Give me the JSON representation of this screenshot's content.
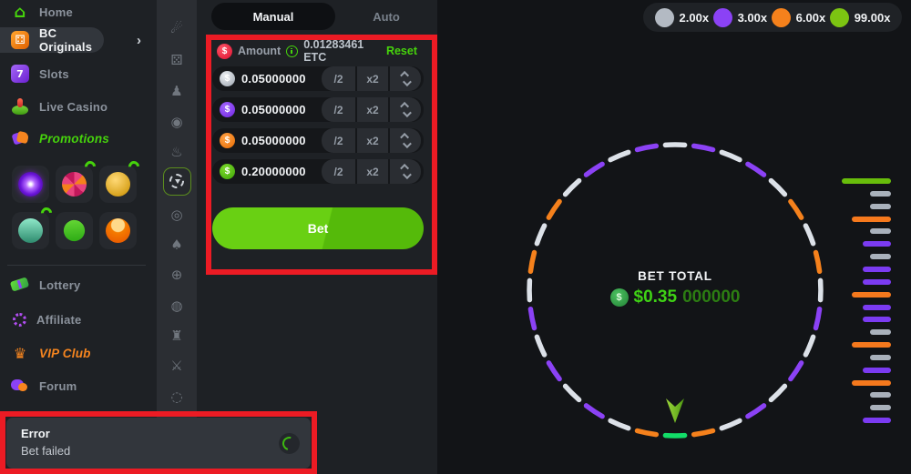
{
  "colors": {
    "annotation_red": "#ec1b24",
    "accent_green": "#46d30c",
    "wheel": {
      "white": "#dce1e8",
      "purple": "#8b42f5",
      "orange": "#f5811c",
      "green": "#12dd68"
    },
    "history": {
      "gray": "#a9b1bb",
      "purple": "#7b3bf2",
      "orange": "#f5791d",
      "green": "#68bd0b"
    }
  },
  "icons": {
    "dollar": "$",
    "chevron_right": "›",
    "home": "⌂",
    "dice": "⚃",
    "slots_seven": "7",
    "crown": "♛"
  },
  "sidebar": {
    "items_top": [
      {
        "id": "home",
        "label": "Home"
      },
      {
        "id": "bc-originals",
        "label": "BC Originals",
        "active": true
      },
      {
        "id": "slots",
        "label": "Slots"
      },
      {
        "id": "live-casino",
        "label": "Live Casino"
      },
      {
        "id": "promotions",
        "label": "Promotions",
        "accent": "green"
      }
    ],
    "tiles": [
      {
        "name": "spiral-target-game",
        "badge": false
      },
      {
        "name": "fortune-wheel-game",
        "badge": true
      },
      {
        "name": "piggy-bank-game",
        "badge": true
      },
      {
        "name": "rocket-game",
        "badge": true
      },
      {
        "name": "dollar-tag-game",
        "badge": false
      },
      {
        "name": "avatar-game",
        "badge": false
      }
    ],
    "items_bottom": [
      {
        "id": "lottery",
        "label": "Lottery"
      },
      {
        "id": "affiliate",
        "label": "Affiliate"
      },
      {
        "id": "vip-club",
        "label": "VIP Club",
        "accent": "orange"
      },
      {
        "id": "forum",
        "label": "Forum"
      }
    ]
  },
  "rail": {
    "games": [
      {
        "name": "crash",
        "glyph": "☄"
      },
      {
        "name": "plinko",
        "glyph": "⚄"
      },
      {
        "name": "mines",
        "glyph": "♟"
      },
      {
        "name": "keno",
        "glyph": "◉"
      },
      {
        "name": "limbo",
        "glyph": "♨"
      },
      {
        "name": "wheel",
        "glyph": "",
        "selected": true
      },
      {
        "name": "coinflip",
        "glyph": "◎"
      },
      {
        "name": "hilo",
        "glyph": "♠"
      },
      {
        "name": "blackjack",
        "glyph": "⊕"
      },
      {
        "name": "roulette",
        "glyph": "◍"
      },
      {
        "name": "tower",
        "glyph": "♜"
      },
      {
        "name": "duel",
        "glyph": "⚔"
      },
      {
        "name": "ufo",
        "glyph": "◌"
      }
    ]
  },
  "bet_panel": {
    "tabs": [
      {
        "label": "Manual",
        "selected": true
      },
      {
        "label": "Auto",
        "selected": false
      }
    ],
    "amount_label": "Amount",
    "amount_value": "0.01283461 ETC",
    "reset_label": "Reset",
    "half_label": "/2",
    "double_label": "x2",
    "rows": [
      {
        "badge": "gray",
        "value": "0.05000000"
      },
      {
        "badge": "purple",
        "value": "0.05000000"
      },
      {
        "badge": "orange",
        "value": "0.05000000"
      },
      {
        "badge": "green",
        "value": "0.20000000"
      }
    ],
    "bet_label": "Bet"
  },
  "game": {
    "multipliers": [
      {
        "label": "2.00x",
        "color": "#b3bac3"
      },
      {
        "label": "3.00x",
        "color": "#8b42f5"
      },
      {
        "label": "6.00x",
        "color": "#f5811c"
      },
      {
        "label": "99.00x",
        "color": "#7cc412"
      }
    ],
    "bet_total_label": "BET TOTAL",
    "bet_total_value": "$0.35",
    "bet_total_zeros": "000000",
    "wheel_segments": [
      "white",
      "purple",
      "white",
      "purple",
      "white",
      "orange",
      "white",
      "orange",
      "white",
      "purple",
      "white",
      "purple",
      "white",
      "purple",
      "white",
      "orange",
      "green",
      "orange",
      "white",
      "purple",
      "white",
      "purple",
      "white",
      "purple",
      "white",
      "orange",
      "white",
      "orange",
      "white",
      "purple",
      "white",
      "purple"
    ],
    "history": [
      "green",
      "gray",
      "gray",
      "orange",
      "gray",
      "purple",
      "gray",
      "purple",
      "purple",
      "orange",
      "purple",
      "purple",
      "gray",
      "orange",
      "gray",
      "purple",
      "orange",
      "gray",
      "gray",
      "purple"
    ]
  },
  "toast": {
    "title": "Error",
    "message": "Bet failed"
  }
}
